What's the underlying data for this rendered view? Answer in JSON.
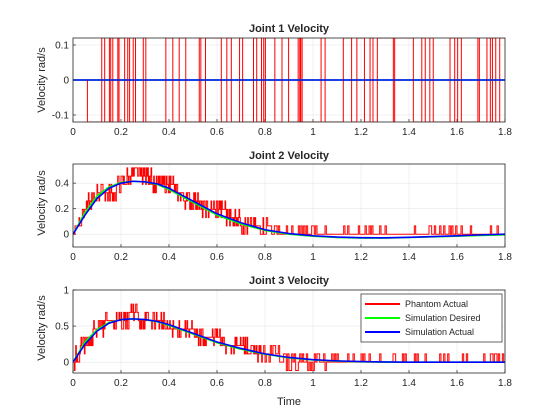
{
  "figure": {
    "xlabel": "Time",
    "legend": {
      "placement": "inside top-right of third subplot",
      "entries": [
        {
          "label": "Phantom Actual",
          "color": "#ff0000"
        },
        {
          "label": "Simulation Desired",
          "color": "#00ff00"
        },
        {
          "label": "Simulation Actual",
          "color": "#0000ff"
        }
      ]
    }
  },
  "chart_data": [
    {
      "type": "line",
      "title": "Joint 1 Velocity",
      "ylabel": "Velocity rad/s",
      "xlabel": "",
      "xlim": [
        0,
        1.8
      ],
      "ylim": [
        -0.12,
        0.12
      ],
      "xticks": [
        "0",
        "0.2",
        "0.4",
        "0.6",
        "0.8",
        "1",
        "1.2",
        "1.4",
        "1.6",
        "1.8"
      ],
      "yticks": [
        "-0.1",
        "0",
        "0.1"
      ],
      "grid": true,
      "series": [
        {
          "name": "Phantom Actual",
          "style": "square-wave noise switching between about -0.12 and 0.12 from t=0.06 to t=1.8",
          "x": [
            0.0,
            0.06,
            1.8
          ],
          "y": [
            0,
            0,
            0
          ]
        },
        {
          "name": "Simulation Desired",
          "x": [
            0,
            1.8
          ],
          "y": [
            0,
            0
          ]
        },
        {
          "name": "Simulation Actual",
          "x": [
            0,
            1.8
          ],
          "y": [
            0,
            0
          ]
        }
      ]
    },
    {
      "type": "line",
      "title": "Joint 2 Velocity",
      "ylabel": "Velocity rad/s",
      "xlabel": "",
      "xlim": [
        0,
        1.8
      ],
      "ylim": [
        -0.1,
        0.55
      ],
      "xticks": [
        "0",
        "0.2",
        "0.4",
        "0.6",
        "0.8",
        "1",
        "1.2",
        "1.4",
        "1.6",
        "1.8"
      ],
      "yticks": [
        "0",
        "0.2",
        "0.4"
      ],
      "grid": true,
      "series": [
        {
          "name": "Phantom Actual",
          "x": [
            0.0,
            0.05,
            0.1,
            0.15,
            0.2,
            0.25,
            0.3,
            0.35,
            0.4,
            0.45,
            0.5,
            0.55,
            0.6,
            0.65,
            0.7,
            0.75,
            0.8,
            0.9,
            1.0,
            1.1,
            1.2,
            1.3,
            1.4,
            1.5,
            1.6,
            1.7,
            1.8
          ],
          "y": [
            0.0,
            0.2,
            0.3,
            0.3,
            0.4,
            0.45,
            0.45,
            0.4,
            0.4,
            0.3,
            0.25,
            0.2,
            0.2,
            0.15,
            0.1,
            0.05,
            0.05,
            0.0,
            0.0,
            0.0,
            0.0,
            0.0,
            0.0,
            0.0,
            0.0,
            0.0,
            0.0
          ]
        },
        {
          "name": "Simulation Desired",
          "x": [
            0.0,
            0.05,
            0.1,
            0.15,
            0.2,
            0.25,
            0.3,
            0.35,
            0.4,
            0.45,
            0.5,
            0.55,
            0.6,
            0.7,
            0.8,
            0.9,
            1.0,
            1.1,
            1.2,
            1.3,
            1.4,
            1.5,
            1.6,
            1.7,
            1.8
          ],
          "y": [
            0.0,
            0.17,
            0.3,
            0.37,
            0.405,
            0.415,
            0.41,
            0.39,
            0.35,
            0.3,
            0.25,
            0.2,
            0.15,
            0.08,
            0.03,
            0.0,
            -0.015,
            -0.025,
            -0.03,
            -0.03,
            -0.025,
            -0.02,
            -0.015,
            -0.01,
            -0.005
          ]
        },
        {
          "name": "Simulation Actual",
          "x": [
            0.0,
            0.05,
            0.1,
            0.15,
            0.2,
            0.25,
            0.3,
            0.35,
            0.4,
            0.45,
            0.5,
            0.55,
            0.6,
            0.7,
            0.8,
            0.9,
            1.0,
            1.1,
            1.2,
            1.3,
            1.4,
            1.5,
            1.6,
            1.7,
            1.8
          ],
          "y": [
            0.0,
            0.15,
            0.28,
            0.36,
            0.4,
            0.415,
            0.41,
            0.395,
            0.36,
            0.31,
            0.26,
            0.21,
            0.16,
            0.09,
            0.035,
            0.005,
            -0.012,
            -0.022,
            -0.027,
            -0.028,
            -0.024,
            -0.018,
            -0.012,
            -0.005,
            0.0
          ]
        }
      ]
    },
    {
      "type": "line",
      "title": "Joint 3 Velocity",
      "ylabel": "Velocity rad/s",
      "xlabel": "Time",
      "xlim": [
        0,
        1.8
      ],
      "ylim": [
        -0.15,
        1.0
      ],
      "xticks": [
        "0",
        "0.2",
        "0.4",
        "0.6",
        "0.8",
        "1",
        "1.2",
        "1.4",
        "1.6",
        "1.8"
      ],
      "yticks": [
        "0",
        "0.5",
        "1"
      ],
      "grid": true,
      "series": [
        {
          "name": "Phantom Actual",
          "x": [
            0.0,
            0.05,
            0.1,
            0.15,
            0.2,
            0.25,
            0.3,
            0.35,
            0.4,
            0.45,
            0.5,
            0.55,
            0.6,
            0.65,
            0.7,
            0.75,
            0.8,
            0.9,
            1.0,
            1.1,
            1.2,
            1.3,
            1.4,
            1.5,
            1.6,
            1.7,
            1.8
          ],
          "y": [
            0.0,
            0.3,
            0.45,
            0.55,
            0.6,
            0.65,
            0.6,
            0.55,
            0.5,
            0.45,
            0.4,
            0.35,
            0.3,
            0.25,
            0.2,
            0.15,
            0.1,
            0.05,
            0.05,
            0.0,
            0.0,
            0.0,
            0.0,
            0.0,
            0.0,
            0.0,
            0.0
          ]
        },
        {
          "name": "Simulation Desired",
          "x": [
            0.0,
            0.05,
            0.1,
            0.15,
            0.2,
            0.25,
            0.3,
            0.35,
            0.4,
            0.45,
            0.5,
            0.55,
            0.6,
            0.7,
            0.8,
            0.9,
            1.0,
            1.1,
            1.2,
            1.3,
            1.4,
            1.5,
            1.6,
            1.7,
            1.8
          ],
          "y": [
            0.0,
            0.28,
            0.45,
            0.55,
            0.59,
            0.6,
            0.59,
            0.56,
            0.51,
            0.45,
            0.39,
            0.33,
            0.27,
            0.18,
            0.11,
            0.06,
            0.03,
            0.015,
            0.005,
            0.0,
            0.0,
            0.0,
            0.0,
            0.0,
            0.0
          ]
        },
        {
          "name": "Simulation Actual",
          "x": [
            0.0,
            0.05,
            0.1,
            0.15,
            0.2,
            0.25,
            0.3,
            0.35,
            0.4,
            0.45,
            0.5,
            0.55,
            0.6,
            0.7,
            0.8,
            0.9,
            1.0,
            1.1,
            1.2,
            1.3,
            1.4,
            1.5,
            1.6,
            1.7,
            1.8
          ],
          "y": [
            0.0,
            0.25,
            0.43,
            0.54,
            0.59,
            0.6,
            0.59,
            0.565,
            0.52,
            0.46,
            0.4,
            0.34,
            0.28,
            0.19,
            0.115,
            0.065,
            0.035,
            0.018,
            0.008,
            0.003,
            0.0,
            0.0,
            0.0,
            0.0,
            0.0
          ]
        }
      ]
    }
  ]
}
